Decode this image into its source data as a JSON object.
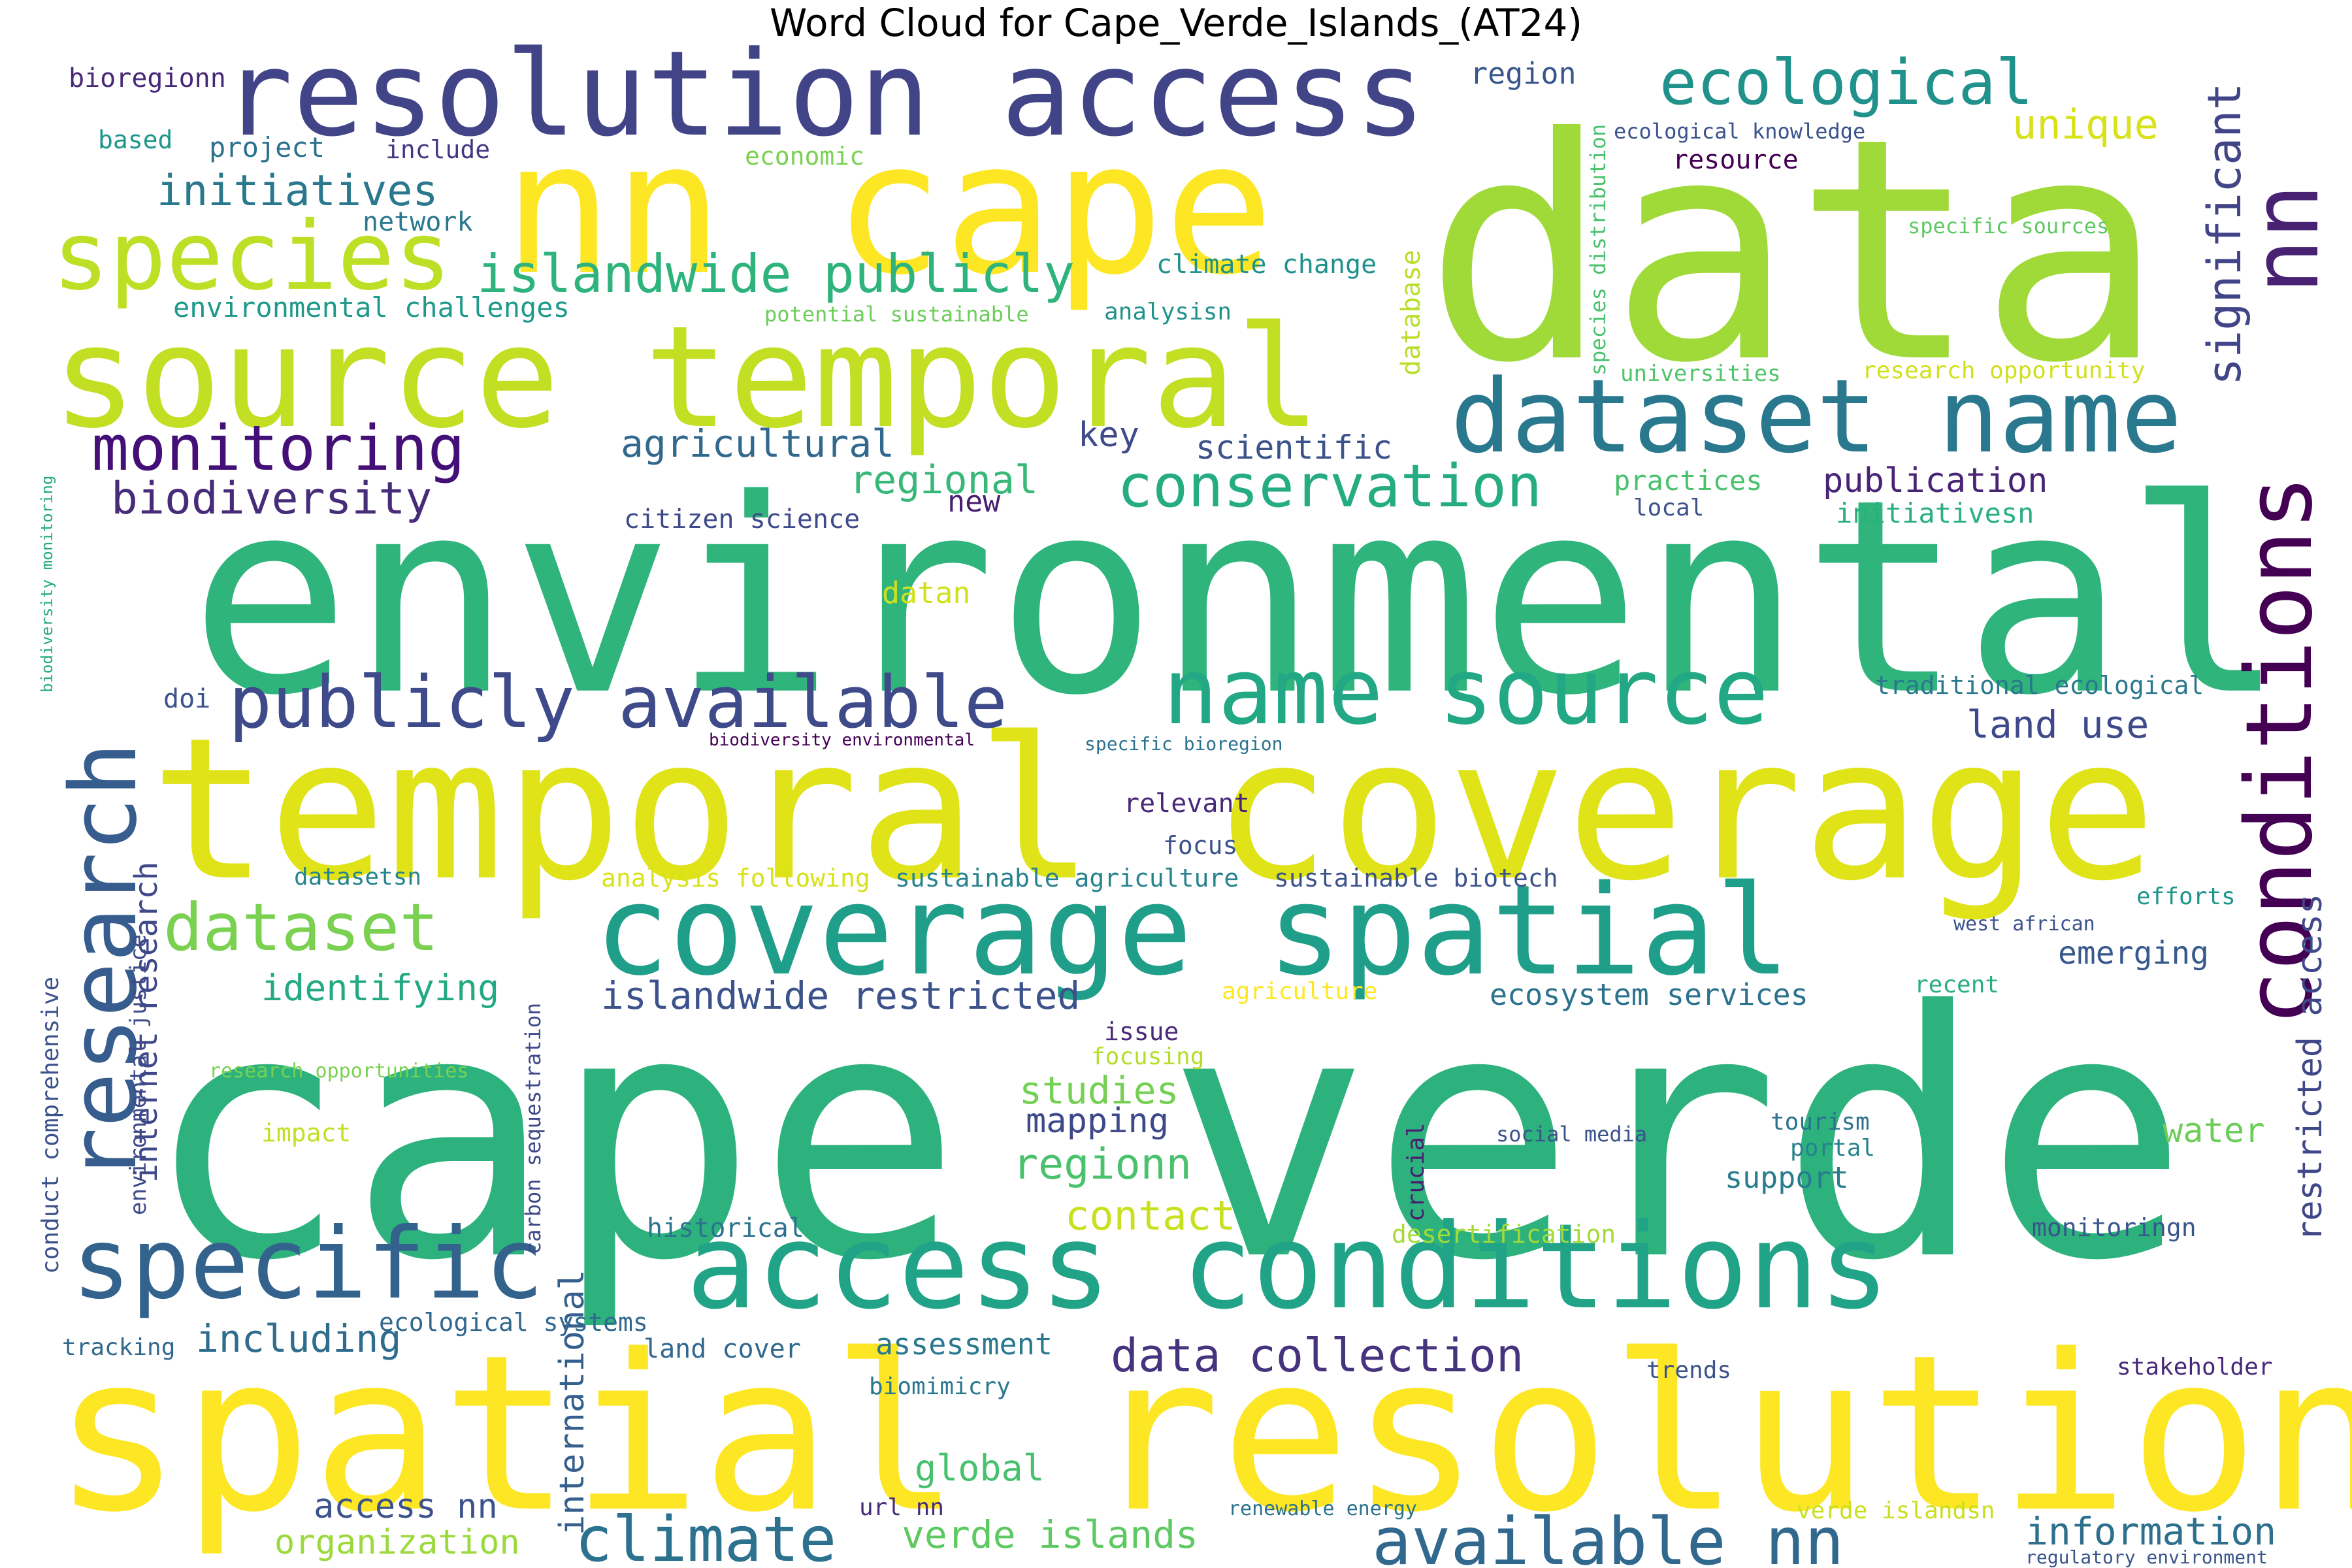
{
  "title": "Word Cloud for Cape_Verde_Islands_(AT24)",
  "words": [
    {
      "text": "cape verde",
      "color": "#2db27d"
    },
    {
      "text": "data",
      "color": "#a0da39"
    },
    {
      "text": "environmental",
      "color": "#2fb47c"
    },
    {
      "text": "spatial resolution",
      "color": "#fde725"
    },
    {
      "text": "temporal coverage",
      "color": "#dfe318"
    },
    {
      "text": "nn cape",
      "color": "#fde725"
    },
    {
      "text": "source temporal",
      "color": "#c2df23"
    },
    {
      "text": "resolution access",
      "color": "#414487"
    },
    {
      "text": "coverage spatial",
      "color": "#1f9e89"
    },
    {
      "text": "access conditions",
      "color": "#20a386"
    },
    {
      "text": "conditions",
      "color": "#440154"
    },
    {
      "text": "research",
      "color": "#365d8d"
    },
    {
      "text": "dataset name",
      "color": "#2a788e"
    },
    {
      "text": "name source",
      "color": "#22a884"
    },
    {
      "text": "specific",
      "color": "#33638d"
    },
    {
      "text": "species",
      "color": "#bddf26"
    },
    {
      "text": "nn",
      "color": "#482173"
    },
    {
      "text": "publicly available",
      "color": "#3e4a89"
    },
    {
      "text": "ecological",
      "color": "#21918c"
    },
    {
      "text": "islandwide publicly",
      "color": "#2eb37c"
    },
    {
      "text": "monitoring",
      "color": "#440f76"
    },
    {
      "text": "conservation",
      "color": "#25ac82"
    },
    {
      "text": "dataset",
      "color": "#7ad151"
    },
    {
      "text": "available nn",
      "color": "#31688e"
    },
    {
      "text": "climate",
      "color": "#2c728e"
    },
    {
      "text": "significant",
      "color": "#414487"
    },
    {
      "text": "initiatives",
      "color": "#2a788e"
    },
    {
      "text": "biodiversity",
      "color": "#472c7a"
    },
    {
      "text": "unique",
      "color": "#d8e219"
    },
    {
      "text": "data collection",
      "color": "#46337e"
    },
    {
      "text": "islandwide restricted",
      "color": "#3b528b"
    },
    {
      "text": "restricted access",
      "color": "#3f4788"
    },
    {
      "text": "agricultural",
      "color": "#31688e"
    },
    {
      "text": "regional",
      "color": "#37b878"
    },
    {
      "text": "identifying",
      "color": "#24aa83"
    },
    {
      "text": "internet research",
      "color": "#3f4889"
    },
    {
      "text": "international",
      "color": "#35608d"
    },
    {
      "text": "regionn",
      "color": "#4ac16d"
    },
    {
      "text": "contact",
      "color": "#c8e020"
    },
    {
      "text": "studies",
      "color": "#75d054"
    },
    {
      "text": "including",
      "color": "#2f6c8e"
    },
    {
      "text": "information",
      "color": "#2d708e"
    },
    {
      "text": "verde islands",
      "color": "#5ec962"
    },
    {
      "text": "organization",
      "color": "#9bd93c"
    },
    {
      "text": "access nn",
      "color": "#3b528b"
    },
    {
      "text": "global",
      "color": "#48c16e"
    },
    {
      "text": "land use",
      "color": "#3e4989"
    },
    {
      "text": "publication",
      "color": "#482475"
    },
    {
      "text": "mapping",
      "color": "#3e4989"
    },
    {
      "text": "scientific",
      "color": "#3b528b"
    },
    {
      "text": "key",
      "color": "#3e4a89"
    },
    {
      "text": "water",
      "color": "#6ccd5a"
    },
    {
      "text": "emerging",
      "color": "#38598c"
    },
    {
      "text": "ecosystem services",
      "color": "#2c728e"
    },
    {
      "text": "support",
      "color": "#287c8e"
    },
    {
      "text": "assessment",
      "color": "#2a788e"
    },
    {
      "text": "project",
      "color": "#2c728e"
    },
    {
      "text": "practices",
      "color": "#4ac16d"
    },
    {
      "text": "initiativesn",
      "color": "#2ab07f"
    },
    {
      "text": "sustainable agriculture",
      "color": "#26828e"
    },
    {
      "text": "sustainable biotech",
      "color": "#3b528b"
    },
    {
      "text": "traditional ecological",
      "color": "#2a788e"
    },
    {
      "text": "environmental challenges",
      "color": "#1f9a8a"
    },
    {
      "text": "climate change",
      "color": "#20928c"
    },
    {
      "text": "database",
      "color": "#bade28"
    },
    {
      "text": "species distribution",
      "color": "#4ac16d"
    },
    {
      "text": "research opportunity",
      "color": "#d0e11c"
    },
    {
      "text": "universities",
      "color": "#50c46a"
    },
    {
      "text": "region",
      "color": "#39568c"
    },
    {
      "text": "resource",
      "color": "#440154"
    },
    {
      "text": "ecological knowledge",
      "color": "#3b528b"
    },
    {
      "text": "specific sources",
      "color": "#5ec962"
    },
    {
      "text": "bioregionn",
      "color": "#482878"
    },
    {
      "text": "based",
      "color": "#1f968b"
    },
    {
      "text": "include",
      "color": "#453781"
    },
    {
      "text": "economic",
      "color": "#7ad151"
    },
    {
      "text": "network",
      "color": "#2a788e"
    },
    {
      "text": "potential sustainable",
      "color": "#6ccd5a"
    },
    {
      "text": "analysisn",
      "color": "#20928c"
    },
    {
      "text": "new",
      "color": "#481f70"
    },
    {
      "text": "citizen science",
      "color": "#3e4a89"
    },
    {
      "text": "local",
      "color": "#3b528b"
    },
    {
      "text": "datan",
      "color": "#d0e11c"
    },
    {
      "text": "doi",
      "color": "#3b528b"
    },
    {
      "text": "biodiversity environmental",
      "color": "#440154"
    },
    {
      "text": "specific bioregion",
      "color": "#2c728e"
    },
    {
      "text": "relevant",
      "color": "#482878"
    },
    {
      "text": "focus",
      "color": "#3b528b"
    },
    {
      "text": "datasetsn",
      "color": "#25848e"
    },
    {
      "text": "analysis following",
      "color": "#d8e219"
    },
    {
      "text": "west african",
      "color": "#3b528b"
    },
    {
      "text": "efforts",
      "color": "#1f968b"
    },
    {
      "text": "agriculture",
      "color": "#fde725"
    },
    {
      "text": "recent",
      "color": "#29af7f"
    },
    {
      "text": "issue",
      "color": "#482878"
    },
    {
      "text": "focusing",
      "color": "#b5de2b"
    },
    {
      "text": "research opportunities",
      "color": "#7ad151"
    },
    {
      "text": "impact",
      "color": "#c2df23"
    },
    {
      "text": "social media",
      "color": "#3b528b"
    },
    {
      "text": "tourism",
      "color": "#2c728e"
    },
    {
      "text": "portal",
      "color": "#26828e"
    },
    {
      "text": "historical",
      "color": "#2c728e"
    },
    {
      "text": "desertification",
      "color": "#a5db36"
    },
    {
      "text": "monitoringn",
      "color": "#39568c"
    },
    {
      "text": "crucial",
      "color": "#481f70"
    },
    {
      "text": "carbon sequestration",
      "color": "#3e4a89"
    },
    {
      "text": "ecological systems",
      "color": "#31688e"
    },
    {
      "text": "tracking",
      "color": "#31688e"
    },
    {
      "text": "land cover",
      "color": "#31688e"
    },
    {
      "text": "biomimicry",
      "color": "#2a788e"
    },
    {
      "text": "trends",
      "color": "#3b528b"
    },
    {
      "text": "stakeholder",
      "color": "#482878"
    },
    {
      "text": "url nn",
      "color": "#472d7b"
    },
    {
      "text": "renewable energy",
      "color": "#2c728e"
    },
    {
      "text": "verde islandsn",
      "color": "#c8e020"
    },
    {
      "text": "regulatory environment",
      "color": "#39568c"
    },
    {
      "text": "conduct comprehensive",
      "color": "#3b528b"
    },
    {
      "text": "environmental justice",
      "color": "#3e4a89"
    },
    {
      "text": "biodiversity monitoring",
      "color": "#22a884"
    }
  ]
}
